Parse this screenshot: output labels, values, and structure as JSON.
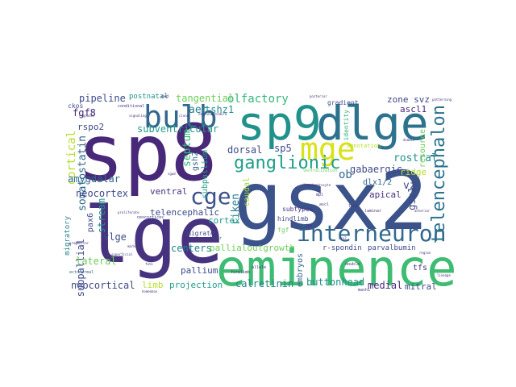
{
  "words": [
    {
      "text": "sp8",
      "color": "#482878"
    },
    {
      "text": "lge",
      "color": "#46327e"
    },
    {
      "text": "gsx2",
      "color": "#3b528b"
    },
    {
      "text": "eminence",
      "color": "#3fbc73"
    },
    {
      "text": "sp9",
      "color": "#21918c"
    },
    {
      "text": "dlge",
      "color": "#2c728e"
    },
    {
      "text": "bulb",
      "color": "#31688e"
    },
    {
      "text": "mge",
      "color": "#d8e219"
    },
    {
      "text": "interneuron",
      "color": "#31688e"
    },
    {
      "text": "cge",
      "color": "#3b528b"
    },
    {
      "text": "ganglionic",
      "color": "#1f9e89"
    },
    {
      "text": "telencephalon",
      "color": "#2c728e"
    },
    {
      "text": "olfactory",
      "color": "#35b779"
    },
    {
      "text": "tangential",
      "color": "#6ece58"
    },
    {
      "text": "pipeline",
      "color": "#3e4a89"
    },
    {
      "text": "postnatal",
      "color": "#21918c"
    },
    {
      "text": "fgf8",
      "color": "#482878"
    },
    {
      "text": "aer",
      "color": "#26828e"
    },
    {
      "text": "tshz1",
      "color": "#21918c"
    },
    {
      "text": "subventricular",
      "color": "#1f9e89"
    },
    {
      "text": "cortical",
      "color": "#b5de2b"
    },
    {
      "text": "rspo2",
      "color": "#3e4a89"
    },
    {
      "text": "somatostatin",
      "color": "#31688e"
    },
    {
      "text": "septum",
      "color": "#35b779"
    },
    {
      "text": "subpallium",
      "color": "#1f9e89"
    },
    {
      "text": "sp5",
      "color": "#3e4a89"
    },
    {
      "text": "dorsal",
      "color": "#3e4a89"
    },
    {
      "text": "gsh2",
      "color": "#31688e"
    },
    {
      "text": "zone svz",
      "color": "#3e4a89"
    },
    {
      "text": "ascl1",
      "color": "#482878"
    },
    {
      "text": "rostral",
      "color": "#21918c"
    },
    {
      "text": "gabaergic",
      "color": "#3e4a89"
    },
    {
      "text": "ridge",
      "color": "#b5de2b"
    },
    {
      "text": "resource",
      "color": "#6ece58"
    },
    {
      "text": "amygdalar",
      "color": "#31688e"
    },
    {
      "text": "neocortex",
      "color": "#3e4a89"
    },
    {
      "text": "ventral",
      "color": "#46327e"
    },
    {
      "text": "caudal",
      "color": "#a0da39"
    },
    {
      "text": "riken",
      "color": "#26828e"
    },
    {
      "text": "ob",
      "color": "#31688e"
    },
    {
      "text": "vz",
      "color": "#3e4a89"
    },
    {
      "text": "dlx1/2",
      "color": "#31688e"
    },
    {
      "text": "apical",
      "color": "#46327e"
    },
    {
      "text": "gsx1",
      "color": "#3e4a89"
    },
    {
      "text": "stream",
      "color": "#21918c"
    },
    {
      "text": "telencephalic",
      "color": "#3e4a89"
    },
    {
      "text": "cortex",
      "color": "#1f9e89"
    },
    {
      "text": "vlge",
      "color": "#3e4a89"
    },
    {
      "text": "subtypes",
      "color": "#46327e"
    },
    {
      "text": "subpallial",
      "color": "#3e4a89"
    },
    {
      "text": "centers",
      "color": "#26828e"
    },
    {
      "text": "pallialoutgrowth",
      "color": "#6ece58"
    },
    {
      "text": "parvalbumin",
      "color": "#3e4a89"
    },
    {
      "text": "lateral",
      "color": "#6ece58"
    },
    {
      "text": "embryos",
      "color": "#31688e"
    },
    {
      "text": "pallium",
      "color": "#3e4a89"
    },
    {
      "text": "neocortical",
      "color": "#3e4a89"
    },
    {
      "text": "limb",
      "color": "#b5de2b"
    },
    {
      "text": "projection",
      "color": "#1f9e89"
    },
    {
      "text": "calretinin",
      "color": "#26828e"
    },
    {
      "text": "buttonhead",
      "color": "#21918c"
    },
    {
      "text": "medial",
      "color": "#482878"
    },
    {
      "text": "mitral",
      "color": "#3e4a89"
    },
    {
      "text": "tfs",
      "color": "#46327e"
    },
    {
      "text": "hindlimb",
      "color": "#3e4a89"
    },
    {
      "text": "migrate",
      "color": "#3e4a89"
    },
    {
      "text": "fgf",
      "color": "#6ece58"
    },
    {
      "text": "gradient",
      "color": "#3e4a89"
    },
    {
      "text": "identity",
      "color": "#35b779"
    },
    {
      "text": "annotation",
      "color": "#b5de2b"
    },
    {
      "text": "migratory",
      "color": "#26828e"
    },
    {
      "text": "pax6",
      "color": "#3e4a89"
    },
    {
      "text": "r-spondin",
      "color": "#3e4a89"
    },
    {
      "text": "ckos",
      "color": "#3e4a89"
    },
    {
      "text": "conditional",
      "color": "#46327e"
    },
    {
      "text": "neocortices",
      "color": "#3e4a89"
    },
    {
      "text": "superficial",
      "color": "#3e4a89"
    },
    {
      "text": "ectodermal",
      "color": "#31688e"
    },
    {
      "text": "homeobox",
      "color": "#46327e"
    },
    {
      "text": "layer",
      "color": "#3e4a89"
    },
    {
      "text": "laminar",
      "color": "#46327e"
    },
    {
      "text": "double",
      "color": "#46327e"
    },
    {
      "text": "mash1",
      "color": "#46327e"
    },
    {
      "text": "allele",
      "color": "#46327e"
    },
    {
      "text": "forelimb",
      "color": "#46327e"
    },
    {
      "text": "posterior",
      "color": "#46327e"
    },
    {
      "text": "patterning",
      "color": "#46327e"
    },
    {
      "text": "regional",
      "color": "#46327e"
    },
    {
      "text": "signaling",
      "color": "#46327e"
    },
    {
      "text": "mpl",
      "color": "#46327e"
    },
    {
      "text": "ascl",
      "color": "#46327e"
    },
    {
      "text": "ventralization",
      "color": "#6ece58"
    },
    {
      "text": "neuronal",
      "color": "#46327e"
    },
    {
      "text": "progenitor",
      "color": "#46327e"
    },
    {
      "text": "ectoderm",
      "color": "#46327e"
    },
    {
      "text": "clone",
      "color": "#46327e"
    },
    {
      "text": "anterior",
      "color": "#46327e"
    },
    {
      "text": "fate",
      "color": "#46327e"
    },
    {
      "text": "gwd",
      "color": "#46327e"
    },
    {
      "text": "lmo",
      "color": "#46327e"
    },
    {
      "text": "nkx2",
      "color": "#46327e"
    },
    {
      "text": "lhx6",
      "color": "#46327e"
    },
    {
      "text": "marker",
      "color": "#46327e"
    },
    {
      "text": "domain",
      "color": "#46327e"
    },
    {
      "text": "sgwd",
      "color": "#46327e"
    },
    {
      "text": "region",
      "color": "#46327e"
    },
    {
      "text": "lineage",
      "color": "#46327e"
    },
    {
      "text": "proliferate",
      "color": "#46327e"
    },
    {
      "text": "oligodendrocyte",
      "color": "#46327e"
    }
  ]
}
